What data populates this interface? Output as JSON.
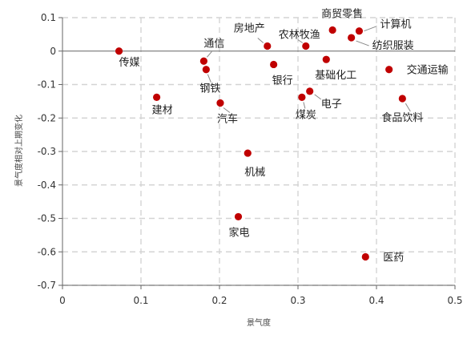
{
  "chart_data": {
    "type": "scatter",
    "xlabel": "景气度",
    "ylabel": "景气度相对上期变化",
    "xlim": [
      0,
      0.5
    ],
    "ylim": [
      -0.7,
      0.1
    ],
    "x_ticks": [
      "0",
      "0.1",
      "0.2",
      "0.3",
      "0.4",
      "0.5"
    ],
    "y_ticks": [
      "0.1",
      "0",
      "-0.1",
      "-0.2",
      "-0.3",
      "-0.4",
      "-0.5",
      "-0.6",
      "-0.7"
    ],
    "grid": true,
    "point_color": "#c00000",
    "points": [
      {
        "label": "传媒",
        "x": 0.072,
        "y": 0.0
      },
      {
        "label": "建材",
        "x": 0.12,
        "y": -0.138
      },
      {
        "label": "通信",
        "x": 0.18,
        "y": -0.03
      },
      {
        "label": "钢铁",
        "x": 0.183,
        "y": -0.055
      },
      {
        "label": "汽车",
        "x": 0.201,
        "y": -0.155
      },
      {
        "label": "房地产",
        "x": 0.261,
        "y": 0.015
      },
      {
        "label": "银行",
        "x": 0.269,
        "y": -0.04
      },
      {
        "label": "机械",
        "x": 0.236,
        "y": -0.305
      },
      {
        "label": "家电",
        "x": 0.224,
        "y": -0.495
      },
      {
        "label": "农林牧渔",
        "x": 0.31,
        "y": 0.015
      },
      {
        "label": "煤炭",
        "x": 0.305,
        "y": -0.138
      },
      {
        "label": "电子",
        "x": 0.315,
        "y": -0.12
      },
      {
        "label": "基础化工",
        "x": 0.336,
        "y": -0.025
      },
      {
        "label": "商贸零售",
        "x": 0.344,
        "y": 0.063
      },
      {
        "label": "计算机",
        "x": 0.378,
        "y": 0.06
      },
      {
        "label": "纺织服装",
        "x": 0.368,
        "y": 0.04
      },
      {
        "label": "交通运输",
        "x": 0.416,
        "y": -0.055
      },
      {
        "label": "食品饮料",
        "x": 0.433,
        "y": -0.142
      },
      {
        "label": "医药",
        "x": 0.386,
        "y": -0.615
      }
    ]
  }
}
